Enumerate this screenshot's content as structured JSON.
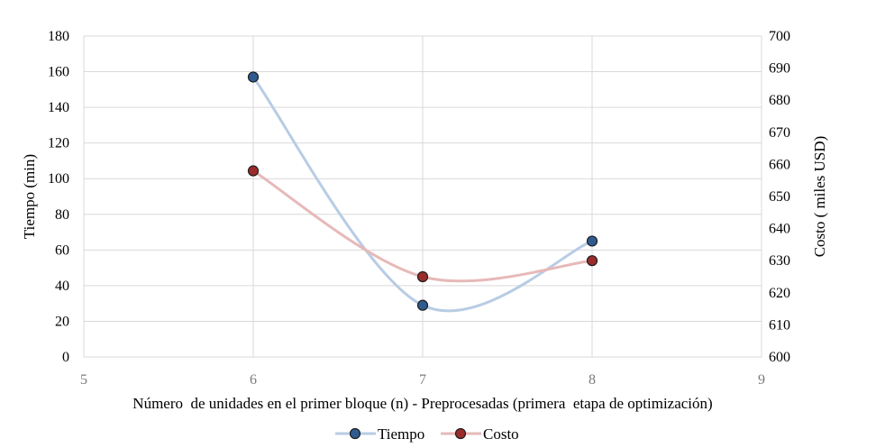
{
  "chart_data": {
    "type": "scatter",
    "x": [
      6,
      7,
      8
    ],
    "series": [
      {
        "name": "Tiempo",
        "axis": "left",
        "values": [
          157,
          29,
          65
        ],
        "color": "#2f5b8f",
        "line_color": "#b8cce4"
      },
      {
        "name": "Costo",
        "axis": "right",
        "values": [
          658,
          625,
          630
        ],
        "color": "#9b2c2c",
        "line_color": "#e6b9b8"
      }
    ],
    "xlabel": "Número  de unidades en el primer bloque (n) - Preprocesadas (primera  etapa de optimización)",
    "ylabel_left": "Tiempo (min)",
    "ylabel_right": "Costo ( miles USD)",
    "xlim": [
      5,
      9
    ],
    "ylim_left": [
      0,
      180
    ],
    "ylim_right": [
      600,
      700
    ],
    "xticks": [
      "5",
      "6",
      "7",
      "8",
      "9"
    ],
    "yticks_left": [
      "0",
      "20",
      "40",
      "60",
      "80",
      "100",
      "120",
      "140",
      "160",
      "180"
    ],
    "yticks_right": [
      "600",
      "610",
      "620",
      "630",
      "640",
      "650",
      "660",
      "670",
      "680",
      "690",
      "700"
    ],
    "grid": true,
    "smooth_lines": true,
    "legend": "bottom"
  }
}
